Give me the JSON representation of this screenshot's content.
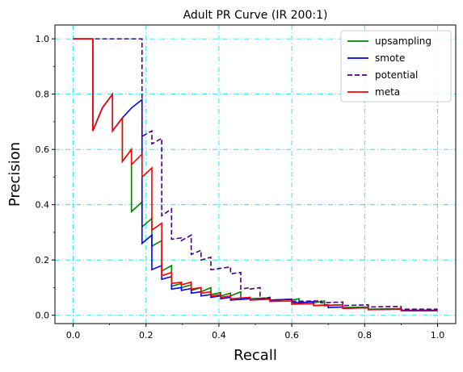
{
  "chart_data": {
    "type": "line",
    "title": "Adult PR Curve (IR 200:1)",
    "xlabel": "Recall",
    "ylabel": "Precision",
    "xlim": [
      -0.05,
      1.05
    ],
    "ylim": [
      -0.03,
      1.05
    ],
    "xticks": [
      0.0,
      0.2,
      0.4,
      0.6,
      0.8,
      1.0
    ],
    "xtick_labels": [
      "0.0",
      "0.2",
      "0.4",
      "0.6",
      "0.8",
      "1.0"
    ],
    "yticks": [
      0.0,
      0.2,
      0.4,
      0.6,
      0.8,
      1.0
    ],
    "ytick_labels": [
      "0.0",
      "0.2",
      "0.4",
      "0.6",
      "0.8",
      "1.0"
    ],
    "grid": true,
    "grid_color": "#00e5ee",
    "legend_position": "top-right",
    "series": [
      {
        "name": "upsampling",
        "color": "#008000",
        "dash": "solid",
        "points": [
          [
            0.0,
            1.0
          ],
          [
            0.054,
            1.0
          ],
          [
            0.054,
            0.667
          ],
          [
            0.08,
            0.75
          ],
          [
            0.108,
            0.8
          ],
          [
            0.108,
            0.667
          ],
          [
            0.135,
            0.714
          ],
          [
            0.135,
            0.556
          ],
          [
            0.16,
            0.6
          ],
          [
            0.16,
            0.375
          ],
          [
            0.189,
            0.41
          ],
          [
            0.189,
            0.32
          ],
          [
            0.216,
            0.35
          ],
          [
            0.216,
            0.25
          ],
          [
            0.243,
            0.27
          ],
          [
            0.243,
            0.16
          ],
          [
            0.27,
            0.18
          ],
          [
            0.27,
            0.105
          ],
          [
            0.297,
            0.115
          ],
          [
            0.297,
            0.1
          ],
          [
            0.324,
            0.11
          ],
          [
            0.324,
            0.09
          ],
          [
            0.351,
            0.1
          ],
          [
            0.351,
            0.085
          ],
          [
            0.378,
            0.1
          ],
          [
            0.378,
            0.075
          ],
          [
            0.405,
            0.082
          ],
          [
            0.405,
            0.07
          ],
          [
            0.432,
            0.08
          ],
          [
            0.432,
            0.07
          ],
          [
            0.46,
            0.085
          ],
          [
            0.46,
            0.06
          ],
          [
            0.486,
            0.065
          ],
          [
            0.486,
            0.06
          ],
          [
            0.54,
            0.063
          ],
          [
            0.54,
            0.055
          ],
          [
            0.6,
            0.058
          ],
          [
            0.6,
            0.055
          ],
          [
            0.62,
            0.06
          ],
          [
            0.62,
            0.045
          ],
          [
            0.66,
            0.05
          ],
          [
            0.66,
            0.045
          ],
          [
            0.69,
            0.052
          ],
          [
            0.69,
            0.035
          ],
          [
            0.74,
            0.038
          ],
          [
            0.74,
            0.028
          ],
          [
            0.81,
            0.03
          ],
          [
            0.81,
            0.022
          ],
          [
            0.9,
            0.024
          ],
          [
            0.9,
            0.018
          ],
          [
            1.0,
            0.018
          ]
        ]
      },
      {
        "name": "smote",
        "color": "#0000ff",
        "dash": "solid",
        "points": [
          [
            0.0,
            1.0
          ],
          [
            0.054,
            1.0
          ],
          [
            0.054,
            0.667
          ],
          [
            0.08,
            0.75
          ],
          [
            0.108,
            0.8
          ],
          [
            0.108,
            0.667
          ],
          [
            0.135,
            0.714
          ],
          [
            0.16,
            0.75
          ],
          [
            0.189,
            0.78
          ],
          [
            0.189,
            0.26
          ],
          [
            0.216,
            0.29
          ],
          [
            0.216,
            0.165
          ],
          [
            0.243,
            0.18
          ],
          [
            0.243,
            0.13
          ],
          [
            0.27,
            0.14
          ],
          [
            0.27,
            0.095
          ],
          [
            0.297,
            0.1
          ],
          [
            0.297,
            0.09
          ],
          [
            0.324,
            0.097
          ],
          [
            0.324,
            0.08
          ],
          [
            0.351,
            0.085
          ],
          [
            0.351,
            0.07
          ],
          [
            0.378,
            0.075
          ],
          [
            0.378,
            0.065
          ],
          [
            0.405,
            0.07
          ],
          [
            0.405,
            0.06
          ],
          [
            0.432,
            0.065
          ],
          [
            0.432,
            0.055
          ],
          [
            0.486,
            0.06
          ],
          [
            0.486,
            0.055
          ],
          [
            0.54,
            0.06
          ],
          [
            0.54,
            0.055
          ],
          [
            0.6,
            0.058
          ],
          [
            0.6,
            0.045
          ],
          [
            0.66,
            0.048
          ],
          [
            0.66,
            0.035
          ],
          [
            0.7,
            0.038
          ],
          [
            0.7,
            0.028
          ],
          [
            0.74,
            0.03
          ],
          [
            0.74,
            0.025
          ],
          [
            0.81,
            0.027
          ],
          [
            0.81,
            0.02
          ],
          [
            0.9,
            0.022
          ],
          [
            0.9,
            0.018
          ],
          [
            1.0,
            0.018
          ]
        ]
      },
      {
        "name": "potential",
        "color": "#4b0082",
        "dash": "dashed",
        "points": [
          [
            0.0,
            1.0
          ],
          [
            0.189,
            1.0
          ],
          [
            0.189,
            0.647
          ],
          [
            0.216,
            0.667
          ],
          [
            0.216,
            0.62
          ],
          [
            0.243,
            0.64
          ],
          [
            0.243,
            0.36
          ],
          [
            0.27,
            0.385
          ],
          [
            0.27,
            0.275
          ],
          [
            0.297,
            0.28
          ],
          [
            0.297,
            0.27
          ],
          [
            0.324,
            0.29
          ],
          [
            0.324,
            0.22
          ],
          [
            0.351,
            0.235
          ],
          [
            0.351,
            0.2
          ],
          [
            0.378,
            0.21
          ],
          [
            0.378,
            0.165
          ],
          [
            0.432,
            0.175
          ],
          [
            0.432,
            0.15
          ],
          [
            0.46,
            0.155
          ],
          [
            0.46,
            0.095
          ],
          [
            0.486,
            0.1
          ],
          [
            0.486,
            0.095
          ],
          [
            0.513,
            0.1
          ],
          [
            0.513,
            0.06
          ],
          [
            0.54,
            0.065
          ],
          [
            0.54,
            0.055
          ],
          [
            0.6,
            0.058
          ],
          [
            0.6,
            0.05
          ],
          [
            0.68,
            0.052
          ],
          [
            0.68,
            0.045
          ],
          [
            0.74,
            0.048
          ],
          [
            0.74,
            0.035
          ],
          [
            0.81,
            0.038
          ],
          [
            0.81,
            0.03
          ],
          [
            0.9,
            0.032
          ],
          [
            0.9,
            0.022
          ],
          [
            1.0,
            0.022
          ]
        ]
      },
      {
        "name": "meta",
        "color": "#ff0000",
        "dash": "solid",
        "points": [
          [
            0.0,
            1.0
          ],
          [
            0.054,
            1.0
          ],
          [
            0.054,
            0.667
          ],
          [
            0.08,
            0.75
          ],
          [
            0.108,
            0.8
          ],
          [
            0.108,
            0.667
          ],
          [
            0.135,
            0.714
          ],
          [
            0.135,
            0.556
          ],
          [
            0.16,
            0.6
          ],
          [
            0.16,
            0.545
          ],
          [
            0.189,
            0.583
          ],
          [
            0.189,
            0.5
          ],
          [
            0.216,
            0.533
          ],
          [
            0.216,
            0.308
          ],
          [
            0.243,
            0.333
          ],
          [
            0.243,
            0.143
          ],
          [
            0.27,
            0.155
          ],
          [
            0.27,
            0.115
          ],
          [
            0.297,
            0.12
          ],
          [
            0.297,
            0.11
          ],
          [
            0.324,
            0.12
          ],
          [
            0.324,
            0.095
          ],
          [
            0.351,
            0.1
          ],
          [
            0.351,
            0.08
          ],
          [
            0.378,
            0.085
          ],
          [
            0.378,
            0.07
          ],
          [
            0.405,
            0.075
          ],
          [
            0.405,
            0.065
          ],
          [
            0.432,
            0.07
          ],
          [
            0.432,
            0.06
          ],
          [
            0.486,
            0.065
          ],
          [
            0.486,
            0.055
          ],
          [
            0.54,
            0.058
          ],
          [
            0.54,
            0.05
          ],
          [
            0.6,
            0.052
          ],
          [
            0.6,
            0.04
          ],
          [
            0.66,
            0.042
          ],
          [
            0.66,
            0.035
          ],
          [
            0.74,
            0.038
          ],
          [
            0.74,
            0.025
          ],
          [
            0.81,
            0.027
          ],
          [
            0.81,
            0.02
          ],
          [
            0.9,
            0.022
          ],
          [
            0.9,
            0.016
          ],
          [
            1.0,
            0.016
          ]
        ]
      }
    ]
  }
}
